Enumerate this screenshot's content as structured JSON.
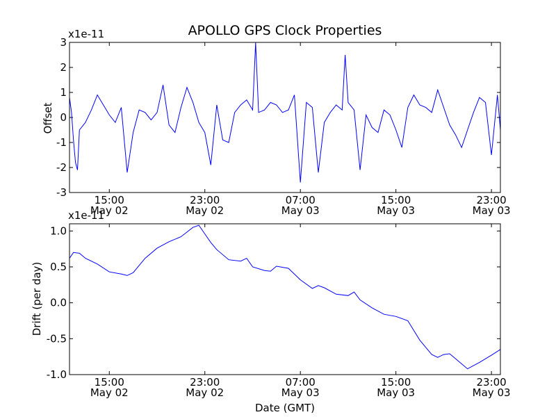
{
  "title": "APOLLO GPS Clock Properties",
  "xlabel": "Date (GMT)",
  "colors": {
    "line": "#0000ff",
    "axes": "#000000",
    "background": "#ffffff"
  },
  "chart_data": [
    {
      "type": "line",
      "title": "APOLLO GPS Clock Properties",
      "ylabel": "Offset",
      "scale_label": "x1e-11",
      "xlabel": "",
      "xlim": [
        "2010-05-02 11:40",
        "2010-05-03 23:45"
      ],
      "ylim": [
        -3,
        3
      ],
      "yticks": [
        -3,
        -2,
        -1,
        0,
        1,
        2,
        3
      ],
      "yticklabels": [
        "-3",
        "-2",
        "-1",
        "0",
        "1",
        "2",
        "3"
      ],
      "xticks": [
        {
          "x": "2010-05-02 15:00",
          "time": "15:00",
          "date": "May 02"
        },
        {
          "x": "2010-05-02 23:00",
          "time": "23:00",
          "date": "May 02"
        },
        {
          "x": "2010-05-03 07:00",
          "time": "07:00",
          "date": "May 03"
        },
        {
          "x": "2010-05-03 15:00",
          "time": "15:00",
          "date": "May 03"
        },
        {
          "x": "2010-05-03 23:00",
          "time": "23:00",
          "date": "May 03"
        }
      ],
      "series": [
        {
          "values_x": [
            "2010-05-02 11:40",
            "2010-05-02 11:50",
            "2010-05-02 12:00",
            "2010-05-02 12:10",
            "2010-05-02 12:20",
            "2010-05-02 12:30",
            "2010-05-02 13:00",
            "2010-05-02 13:30",
            "2010-05-02 14:00",
            "2010-05-02 14:30",
            "2010-05-02 15:00",
            "2010-05-02 15:30",
            "2010-05-02 16:00",
            "2010-05-02 16:30",
            "2010-05-02 17:00",
            "2010-05-02 17:30",
            "2010-05-02 18:00",
            "2010-05-02 18:30",
            "2010-05-02 19:00",
            "2010-05-02 19:30",
            "2010-05-02 20:00",
            "2010-05-02 20:30",
            "2010-05-02 21:00",
            "2010-05-02 21:30",
            "2010-05-02 22:00",
            "2010-05-02 22:30",
            "2010-05-02 23:00",
            "2010-05-02 23:30",
            "2010-05-03 00:00",
            "2010-05-03 00:30",
            "2010-05-03 01:00",
            "2010-05-03 01:30",
            "2010-05-03 02:00",
            "2010-05-03 02:30",
            "2010-05-03 03:00",
            "2010-05-03 03:15",
            "2010-05-03 03:30",
            "2010-05-03 04:00",
            "2010-05-03 04:30",
            "2010-05-03 05:00",
            "2010-05-03 05:30",
            "2010-05-03 06:00",
            "2010-05-03 06:30",
            "2010-05-03 07:00",
            "2010-05-03 07:30",
            "2010-05-03 08:00",
            "2010-05-03 08:30",
            "2010-05-03 09:00",
            "2010-05-03 09:30",
            "2010-05-03 10:00",
            "2010-05-03 10:30",
            "2010-05-03 10:45",
            "2010-05-03 11:00",
            "2010-05-03 11:30",
            "2010-05-03 12:00",
            "2010-05-03 12:30",
            "2010-05-03 13:00",
            "2010-05-03 13:30",
            "2010-05-03 14:00",
            "2010-05-03 14:30",
            "2010-05-03 15:00",
            "2010-05-03 15:30",
            "2010-05-03 16:00",
            "2010-05-03 16:30",
            "2010-05-03 17:00",
            "2010-05-03 17:30",
            "2010-05-03 18:00",
            "2010-05-03 18:30",
            "2010-05-03 19:00",
            "2010-05-03 19:30",
            "2010-05-03 20:00",
            "2010-05-03 20:30",
            "2010-05-03 21:00",
            "2010-05-03 21:30",
            "2010-05-03 22:00",
            "2010-05-03 22:30",
            "2010-05-03 23:00",
            "2010-05-03 23:30",
            "2010-05-03 23:45"
          ],
          "values_y": [
            0.8,
            0.2,
            -0.9,
            -1.8,
            -2.1,
            -0.5,
            -0.2,
            0.3,
            0.9,
            0.5,
            0.1,
            -0.2,
            0.4,
            -2.2,
            -0.6,
            0.3,
            0.2,
            -0.1,
            0.2,
            1.3,
            -0.3,
            -0.6,
            0.4,
            1.2,
            0.6,
            -0.2,
            -0.6,
            -1.9,
            0.5,
            -0.9,
            -1.0,
            0.2,
            0.5,
            0.7,
            0.3,
            3.0,
            0.2,
            0.3,
            0.6,
            0.5,
            0.2,
            0.3,
            0.9,
            -2.6,
            0.6,
            0.4,
            -2.2,
            -0.2,
            0.2,
            0.5,
            0.3,
            2.5,
            0.6,
            0.3,
            -2.1,
            0.1,
            -0.4,
            -0.6,
            0.3,
            0.1,
            -0.5,
            -1.2,
            0.4,
            0.9,
            0.5,
            0.4,
            0.2,
            1.1,
            0.4,
            -0.3,
            -0.7,
            -1.2,
            -0.5,
            0.2,
            0.8,
            0.6,
            -1.5,
            0.9,
            -0.5
          ]
        }
      ]
    },
    {
      "type": "line",
      "title": "",
      "ylabel": "Drift (per day)",
      "scale_label": "x1e-11",
      "xlabel": "Date (GMT)",
      "xlim": [
        "2010-05-02 11:40",
        "2010-05-03 23:45"
      ],
      "ylim": [
        -1.0,
        1.1
      ],
      "yticks": [
        -1.0,
        -0.5,
        0.0,
        0.5,
        1.0
      ],
      "yticklabels": [
        "-1.0",
        "-0.5",
        "0.0",
        "0.5",
        "1.0"
      ],
      "xticks": [
        {
          "x": "2010-05-02 15:00",
          "time": "15:00",
          "date": "May 02"
        },
        {
          "x": "2010-05-02 23:00",
          "time": "23:00",
          "date": "May 02"
        },
        {
          "x": "2010-05-03 07:00",
          "time": "07:00",
          "date": "May 03"
        },
        {
          "x": "2010-05-03 15:00",
          "time": "15:00",
          "date": "May 03"
        },
        {
          "x": "2010-05-03 23:00",
          "time": "23:00",
          "date": "May 03"
        }
      ],
      "series": [
        {
          "values_x": [
            "2010-05-02 11:40",
            "2010-05-02 12:00",
            "2010-05-02 12:30",
            "2010-05-02 13:00",
            "2010-05-02 14:00",
            "2010-05-02 15:00",
            "2010-05-02 16:00",
            "2010-05-02 16:30",
            "2010-05-02 17:00",
            "2010-05-02 18:00",
            "2010-05-02 19:00",
            "2010-05-02 20:00",
            "2010-05-02 21:00",
            "2010-05-02 22:00",
            "2010-05-02 22:30",
            "2010-05-02 23:00",
            "2010-05-02 23:30",
            "2010-05-03 00:00",
            "2010-05-03 01:00",
            "2010-05-03 02:00",
            "2010-05-03 02:30",
            "2010-05-03 03:00",
            "2010-05-03 04:00",
            "2010-05-03 04:30",
            "2010-05-03 05:00",
            "2010-05-03 06:00",
            "2010-05-03 07:00",
            "2010-05-03 08:00",
            "2010-05-03 08:30",
            "2010-05-03 09:00",
            "2010-05-03 10:00",
            "2010-05-03 11:00",
            "2010-05-03 11:30",
            "2010-05-03 12:00",
            "2010-05-03 13:00",
            "2010-05-03 14:00",
            "2010-05-03 15:00",
            "2010-05-03 16:00",
            "2010-05-03 17:00",
            "2010-05-03 18:00",
            "2010-05-03 18:30",
            "2010-05-03 19:00",
            "2010-05-03 19:30",
            "2010-05-03 20:00",
            "2010-05-03 20:30",
            "2010-05-03 21:00",
            "2010-05-03 22:00",
            "2010-05-03 23:00",
            "2010-05-03 23:45"
          ],
          "values_y": [
            0.62,
            0.7,
            0.69,
            0.62,
            0.54,
            0.43,
            0.4,
            0.38,
            0.42,
            0.62,
            0.76,
            0.85,
            0.92,
            1.05,
            1.08,
            0.96,
            0.84,
            0.74,
            0.6,
            0.58,
            0.62,
            0.5,
            0.45,
            0.44,
            0.51,
            0.48,
            0.32,
            0.2,
            0.24,
            0.21,
            0.12,
            0.1,
            0.15,
            0.04,
            -0.07,
            -0.16,
            -0.19,
            -0.25,
            -0.52,
            -0.72,
            -0.76,
            -0.72,
            -0.71,
            -0.78,
            -0.85,
            -0.92,
            -0.83,
            -0.73,
            -0.65
          ]
        }
      ]
    }
  ]
}
